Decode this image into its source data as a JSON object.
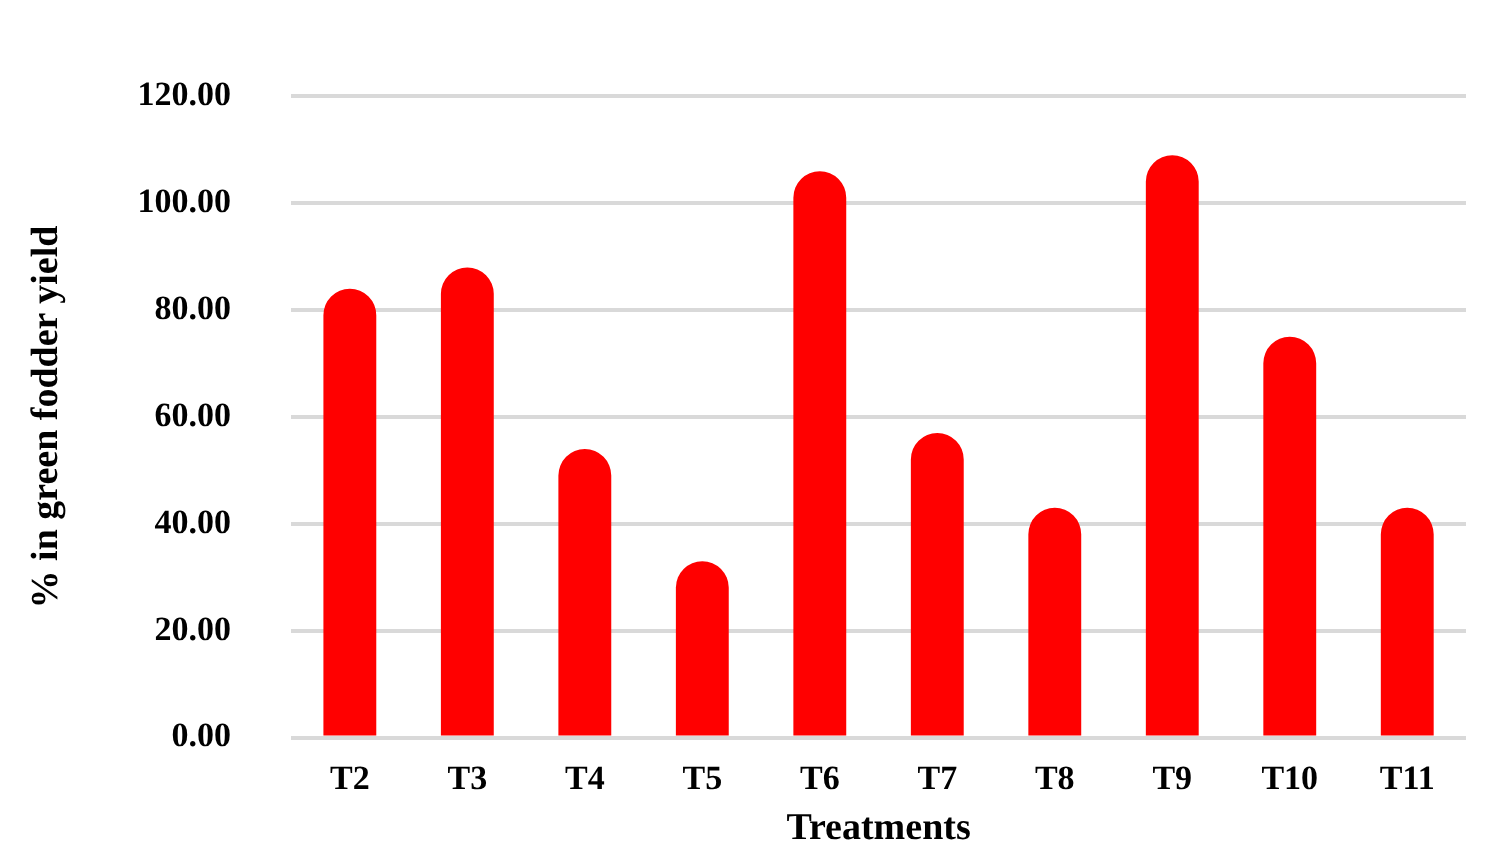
{
  "chart_data": {
    "type": "bar",
    "xlabel": "Treatments",
    "ylabel": "% in green fodder yield",
    "categories": [
      "T2",
      "T3",
      "T4",
      "T5",
      "T6",
      "T7",
      "T8",
      "T9",
      "T10",
      "T11"
    ],
    "values": [
      84,
      88,
      54,
      33,
      106,
      57,
      43,
      109,
      75,
      43
    ],
    "color": "#ff0000",
    "ylim": [
      0,
      120
    ],
    "yticks": [
      {
        "value": 0,
        "label": "0.00"
      },
      {
        "value": 20,
        "label": "20.00"
      },
      {
        "value": 40,
        "label": "40.00"
      },
      {
        "value": 60,
        "label": "60.00"
      },
      {
        "value": 80,
        "label": "80.00"
      },
      {
        "value": 100,
        "label": "100.00"
      },
      {
        "value": 120,
        "label": "120.00"
      }
    ],
    "grid": "y",
    "legend": false
  }
}
